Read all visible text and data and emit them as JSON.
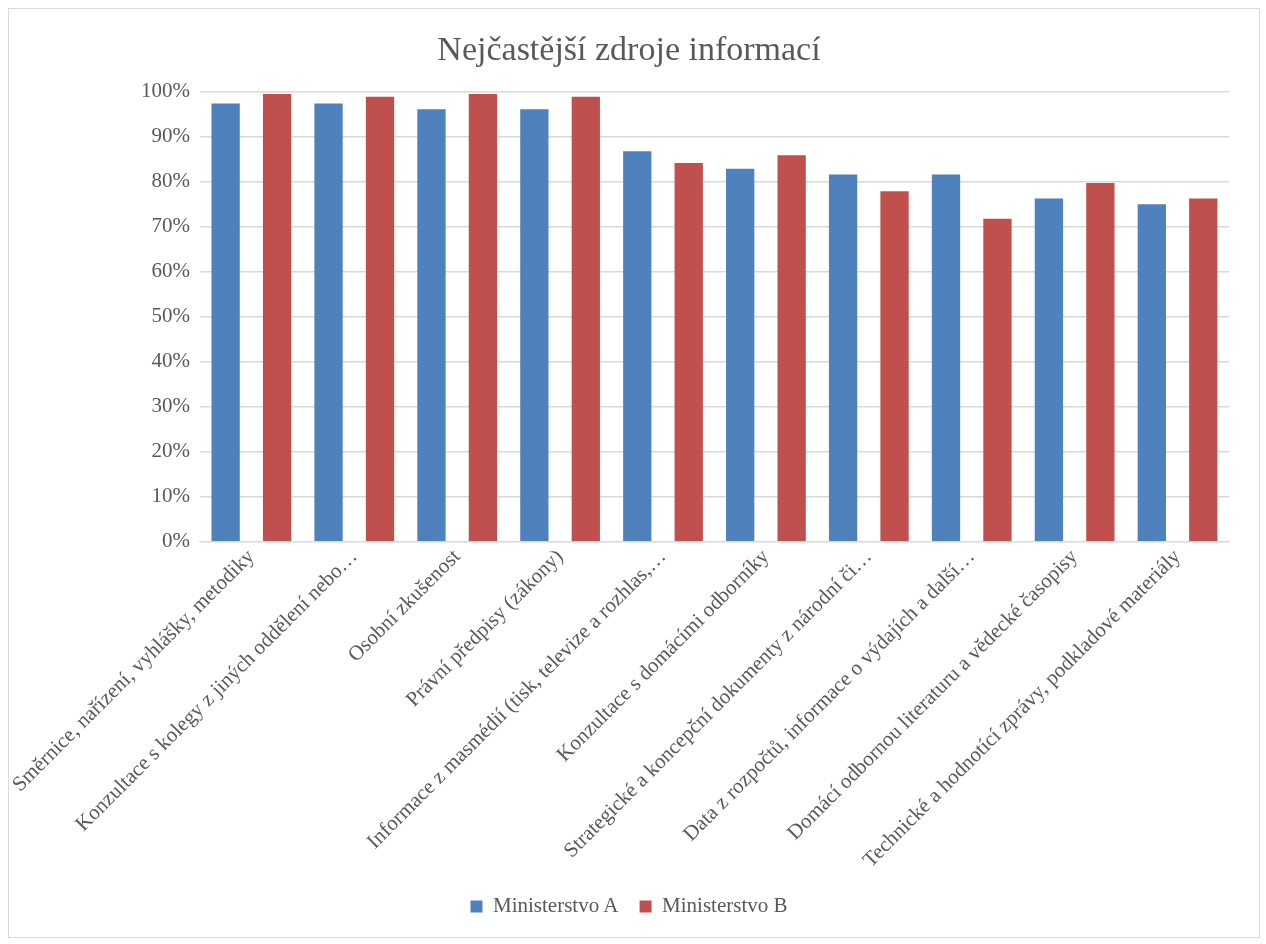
{
  "chart_data": {
    "type": "bar",
    "title": "Nejčastější zdroje informací",
    "categories": [
      "Směrnice, nařízení, vyhlášky, metodiky",
      "Konzultace s kolegy z jiných oddělení nebo…",
      "Osobní zkušenost",
      "Právní předpisy (zákony)",
      "Informace z masmédií (tisk, televize a rozhlas,…",
      "Konzultace s domácími odborníky",
      "Strategické a koncepční dokumenty z národní či…",
      "Data z rozpočtů, informace o výdajích a další…",
      "Domácí odbornou literaturu a vědecké časopisy",
      "Technické a hodnotící zprávy, podkladové materiály"
    ],
    "series": [
      {
        "name": "Ministerstvo A",
        "color": "#4f81bd",
        "values": [
          97.4,
          97.4,
          96.1,
          96.1,
          86.8,
          82.9,
          81.6,
          81.6,
          76.3,
          75.0
        ]
      },
      {
        "name": "Ministerstvo B",
        "color": "#c0504d",
        "values": [
          99.5,
          98.9,
          99.5,
          98.9,
          84.2,
          85.9,
          77.9,
          71.8,
          79.7,
          76.3
        ]
      }
    ],
    "ylim": [
      0,
      100
    ],
    "yticks": [
      {
        "value": 0,
        "label": "0%"
      },
      {
        "value": 10,
        "label": "10%"
      },
      {
        "value": 20,
        "label": "20%"
      },
      {
        "value": 30,
        "label": "30%"
      },
      {
        "value": 40,
        "label": "40%"
      },
      {
        "value": 50,
        "label": "50%"
      },
      {
        "value": 60,
        "label": "60%"
      },
      {
        "value": 70,
        "label": "70%"
      },
      {
        "value": 80,
        "label": "80%"
      },
      {
        "value": 90,
        "label": "90%"
      },
      {
        "value": 100,
        "label": "100%"
      }
    ],
    "grid": "y",
    "legend": "bottom"
  }
}
